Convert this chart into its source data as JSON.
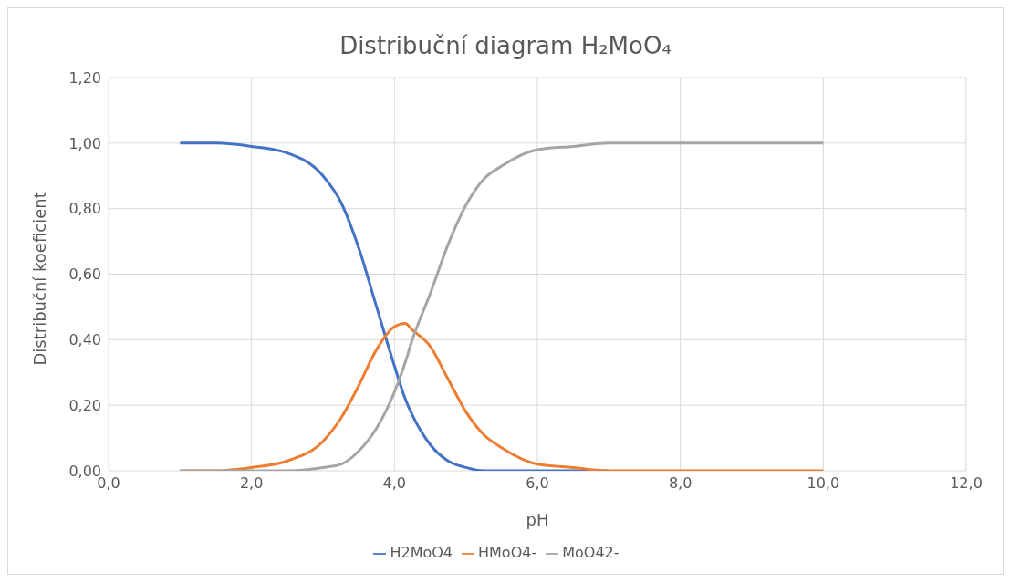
{
  "chart_data": {
    "type": "line",
    "title": "Distribuční diagram H₂MoO₄",
    "xlabel": "pH",
    "ylabel": "Distribuční koeficient",
    "x": [
      1,
      1.5,
      2,
      2.5,
      3,
      3.25,
      3.5,
      3.75,
      4,
      4.15,
      4.25,
      4.5,
      4.75,
      5,
      5.25,
      5.5,
      6,
      6.5,
      7,
      8,
      9,
      10
    ],
    "series": [
      {
        "name": "H2MoO4",
        "color": "#4472c4",
        "values": [
          1.0,
          1.0,
          0.99,
          0.97,
          0.9,
          0.82,
          0.68,
          0.5,
          0.32,
          0.22,
          0.17,
          0.08,
          0.03,
          0.01,
          0.0,
          0.0,
          0.0,
          0.0,
          0.0,
          null,
          null,
          null
        ]
      },
      {
        "name": "HMoO4-",
        "color": "#ed7d31",
        "values": [
          0.0,
          0.0,
          0.01,
          0.03,
          0.09,
          0.16,
          0.26,
          0.37,
          0.44,
          0.45,
          0.43,
          0.38,
          0.28,
          0.18,
          0.11,
          0.07,
          0.02,
          0.01,
          0.0,
          0.0,
          0.0,
          0.0
        ]
      },
      {
        "name": "MoO42-",
        "color": "#a5a5a5",
        "values": [
          0.0,
          0.0,
          0.0,
          0.0,
          0.01,
          0.02,
          0.06,
          0.13,
          0.24,
          0.33,
          0.4,
          0.54,
          0.69,
          0.81,
          0.89,
          0.93,
          0.98,
          0.99,
          1.0,
          1.0,
          1.0,
          1.0
        ]
      }
    ],
    "xlim": [
      0,
      12
    ],
    "xticks": [
      {
        "value": 0,
        "label": "0,0"
      },
      {
        "value": 2,
        "label": "2,0"
      },
      {
        "value": 4,
        "label": "4,0"
      },
      {
        "value": 6,
        "label": "6,0"
      },
      {
        "value": 8,
        "label": "8,0"
      },
      {
        "value": 10,
        "label": "10,0"
      },
      {
        "value": 12,
        "label": "12,0"
      }
    ],
    "ylim": [
      0,
      1.2
    ],
    "yticks": [
      {
        "value": 0,
        "label": "0,00"
      },
      {
        "value": 0.2,
        "label": "0,20"
      },
      {
        "value": 0.4,
        "label": "0,40"
      },
      {
        "value": 0.6,
        "label": "0,60"
      },
      {
        "value": 0.8,
        "label": "0,80"
      },
      {
        "value": 1,
        "label": "1,00"
      },
      {
        "value": 1.2,
        "label": "1,20"
      }
    ],
    "grid": true,
    "legend": "bottom",
    "marker": "none",
    "line_style": "solid"
  }
}
